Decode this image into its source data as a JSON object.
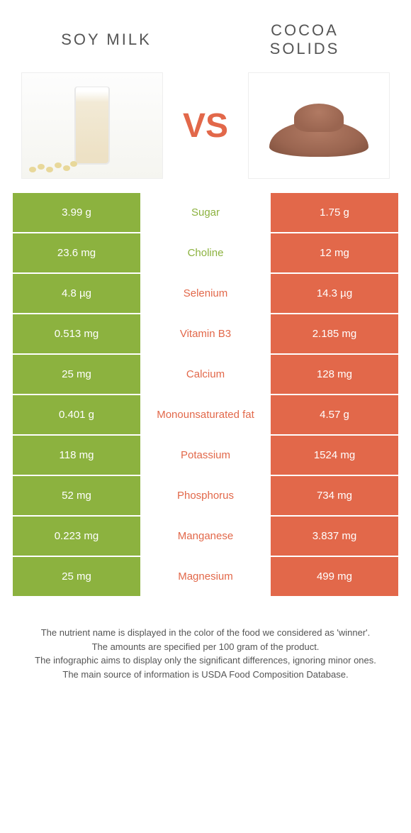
{
  "colors": {
    "green": "#8cb23f",
    "orange": "#e2684a",
    "text": "#555555"
  },
  "header": {
    "left_title": "Soy milk",
    "right_title": "Cocoa solids",
    "vs": "VS"
  },
  "rows": [
    {
      "left": "3.99 g",
      "label": "Sugar",
      "right": "1.75 g",
      "winner": "left"
    },
    {
      "left": "23.6 mg",
      "label": "Choline",
      "right": "12 mg",
      "winner": "left"
    },
    {
      "left": "4.8 µg",
      "label": "Selenium",
      "right": "14.3 µg",
      "winner": "right"
    },
    {
      "left": "0.513 mg",
      "label": "Vitamin B3",
      "right": "2.185 mg",
      "winner": "right"
    },
    {
      "left": "25 mg",
      "label": "Calcium",
      "right": "128 mg",
      "winner": "right"
    },
    {
      "left": "0.401 g",
      "label": "Monounsaturated fat",
      "right": "4.57 g",
      "winner": "right"
    },
    {
      "left": "118 mg",
      "label": "Potassium",
      "right": "1524 mg",
      "winner": "right"
    },
    {
      "left": "52 mg",
      "label": "Phosphorus",
      "right": "734 mg",
      "winner": "right"
    },
    {
      "left": "0.223 mg",
      "label": "Manganese",
      "right": "3.837 mg",
      "winner": "right"
    },
    {
      "left": "25 mg",
      "label": "Magnesium",
      "right": "499 mg",
      "winner": "right"
    }
  ],
  "footer": {
    "line1": "The nutrient name is displayed in the color of the food we considered as 'winner'.",
    "line2": "The amounts are specified per 100 gram of the product.",
    "line3": "The infographic aims to display only the significant differences, ignoring minor ones.",
    "line4": "The main source of information is USDA Food Composition Database."
  }
}
